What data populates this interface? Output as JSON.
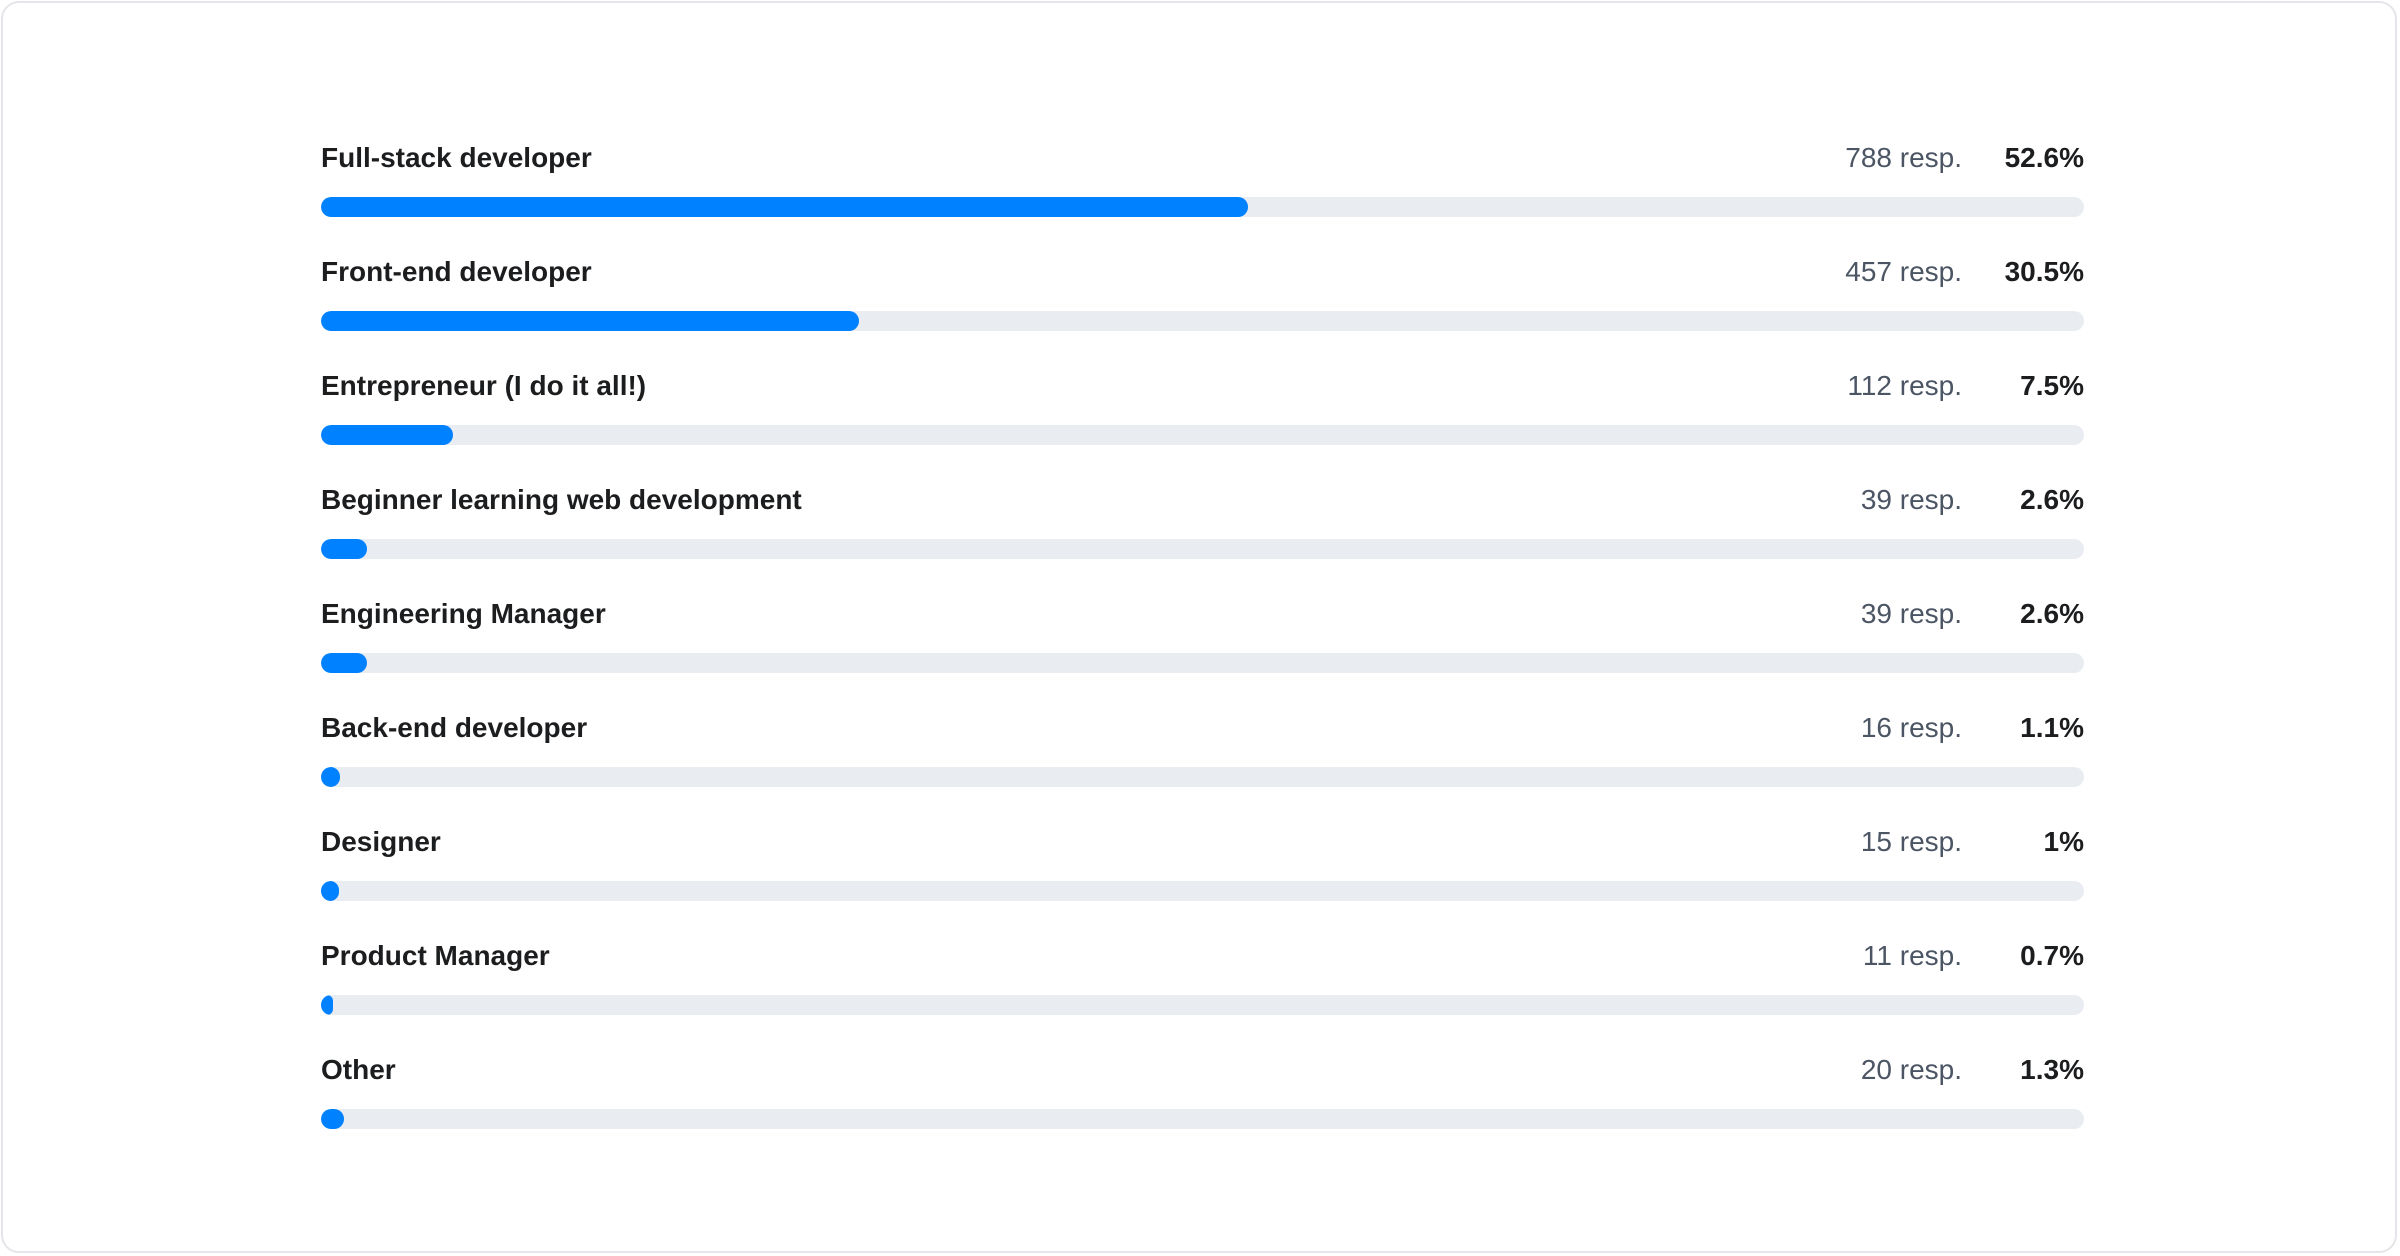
{
  "chart_data": {
    "type": "bar",
    "orientation": "horizontal",
    "colors": {
      "fill": "#0081ff",
      "track": "#e9ecf1"
    },
    "xlim": [
      0,
      100
    ],
    "categories": [
      "Full-stack developer",
      "Front-end developer",
      "Entrepreneur (I do it all!)",
      "Beginner learning web development",
      "Engineering Manager",
      "Back-end developer",
      "Designer",
      "Product Manager",
      "Other"
    ],
    "responses": [
      "788 resp.",
      "457 resp.",
      "112 resp.",
      "39 resp.",
      "39 resp.",
      "16 resp.",
      "15 resp.",
      "11 resp.",
      "20 resp."
    ],
    "percent_labels": [
      "52.6%",
      "30.5%",
      "7.5%",
      "2.6%",
      "2.6%",
      "1.1%",
      "1%",
      "0.7%",
      "1.3%"
    ],
    "values": [
      52.6,
      30.5,
      7.5,
      2.6,
      2.6,
      1.1,
      1,
      0.7,
      1.3
    ]
  }
}
